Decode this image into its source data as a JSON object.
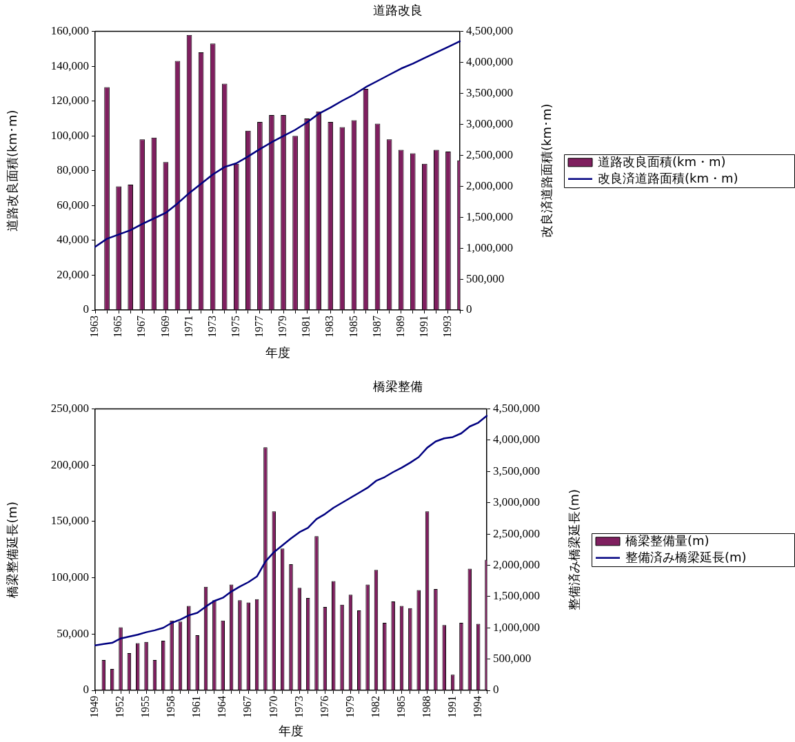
{
  "chart_data": [
    {
      "type": "bar",
      "title": "道路改良",
      "xlabel": "年度",
      "ylabel": "道路改良面積(km･m)",
      "y2label": "改良済道路面積(km･m)",
      "categories": [
        "1963",
        null,
        "1965",
        null,
        "1967",
        null,
        "1969",
        null,
        "1971",
        null,
        "1973",
        null,
        "1975",
        null,
        "1977",
        null,
        "1979",
        null,
        "1981",
        null,
        "1983",
        null,
        "1985",
        null,
        "1987",
        null,
        "1989",
        null,
        "1991",
        null,
        "1993",
        null
      ],
      "series": [
        {
          "name": "道路改良面積(km・m)",
          "color": "#7f1f5f",
          "values": [
            null,
            128000,
            71000,
            72000,
            98000,
            99000,
            85000,
            143000,
            158000,
            148000,
            153000,
            130000,
            84000,
            103000,
            108000,
            112000,
            112000,
            100000,
            110000,
            114000,
            108000,
            105000,
            109000,
            127000,
            107000,
            98000,
            92000,
            90000,
            84000,
            92000,
            91000,
            86000
          ]
        },
        {
          "name": "改良済道路面積(km・m)",
          "type": "line",
          "axis": "y2",
          "color": "#000080",
          "values": [
            1020000,
            1150000,
            1220000,
            1290000,
            1390000,
            1480000,
            1570000,
            1720000,
            1890000,
            2040000,
            2190000,
            2310000,
            2370000,
            2480000,
            2600000,
            2710000,
            2810000,
            2910000,
            3030000,
            3170000,
            3270000,
            3380000,
            3480000,
            3600000,
            3700000,
            3800000,
            3900000,
            3980000,
            4070000,
            4160000,
            4250000,
            4340000
          ]
        }
      ],
      "ylim": [
        0,
        160000
      ],
      "yticks": [
        0,
        {
          "value": 20000,
          "label": "20,000"
        },
        {
          "value": 40000,
          "label": "40,000"
        },
        {
          "value": 60000,
          "label": "60,000"
        },
        {
          "value": 80000,
          "label": "80,000"
        },
        {
          "value": 100000,
          "label": "100,000"
        },
        {
          "value": 120000,
          "label": "120,000"
        },
        {
          "value": 140000,
          "label": "140,000"
        },
        {
          "value": 160000,
          "label": "160,000"
        }
      ],
      "y2lim": [
        0,
        4500000
      ],
      "y2ticks": [
        0,
        {
          "value": 500000,
          "label": "500,000"
        },
        {
          "value": 1000000,
          "label": "1,000,000"
        },
        {
          "value": 1500000,
          "label": "1,500,000"
        },
        {
          "value": 2000000,
          "label": "2,000,000"
        },
        {
          "value": 2500000,
          "label": "2,500,000"
        },
        {
          "value": 3000000,
          "label": "3,000,000"
        },
        {
          "value": 3500000,
          "label": "3,500,000"
        },
        {
          "value": 4000000,
          "label": "4,000,000"
        },
        {
          "value": 4500000,
          "label": "4,500,000"
        }
      ],
      "grid": false,
      "legend": "right"
    },
    {
      "type": "bar",
      "title": "橋梁整備",
      "xlabel": "年度",
      "ylabel": "橋梁整備延長(m)",
      "y2label": "整備済み橋梁延長(m)",
      "categories": [
        "1949",
        null,
        null,
        "1952",
        null,
        null,
        "1955",
        null,
        null,
        "1958",
        null,
        null,
        "1961",
        null,
        null,
        "1964",
        null,
        null,
        "1967",
        null,
        null,
        "1970",
        null,
        null,
        "1973",
        null,
        null,
        "1976",
        null,
        null,
        "1979",
        null,
        null,
        "1982",
        null,
        null,
        "1985",
        null,
        null,
        "1988",
        null,
        null,
        "1991",
        null,
        null,
        "1994",
        null
      ],
      "series": [
        {
          "name": "橋梁整備量(m)",
          "color": "#7f1f5f",
          "values": [
            null,
            27000,
            19000,
            56000,
            33000,
            42000,
            43000,
            27000,
            44000,
            62000,
            61000,
            75000,
            49000,
            92000,
            80000,
            62000,
            94000,
            80000,
            78000,
            81000,
            216000,
            159000,
            126000,
            112000,
            91000,
            82000,
            137000,
            74000,
            97000,
            76000,
            85000,
            71000,
            94000,
            107000,
            60000,
            79000,
            75000,
            73000,
            89000,
            159000,
            90000,
            58000,
            14000,
            60000,
            108000,
            59000,
            116000
          ]
        },
        {
          "name": "整備済み橋梁延長(m)",
          "type": "line",
          "axis": "y2",
          "color": "#000080",
          "values": [
            720000,
            740000,
            760000,
            830000,
            860000,
            890000,
            930000,
            960000,
            1000000,
            1080000,
            1130000,
            1200000,
            1240000,
            1340000,
            1430000,
            1480000,
            1580000,
            1660000,
            1730000,
            1820000,
            2060000,
            2210000,
            2320000,
            2430000,
            2530000,
            2600000,
            2740000,
            2820000,
            2920000,
            3000000,
            3080000,
            3160000,
            3240000,
            3350000,
            3410000,
            3490000,
            3560000,
            3640000,
            3730000,
            3880000,
            3980000,
            4030000,
            4050000,
            4110000,
            4220000,
            4280000,
            4390000
          ]
        }
      ],
      "ylim": [
        0,
        250000
      ],
      "yticks": [
        0,
        {
          "value": 50000,
          "label": "50,000"
        },
        {
          "value": 100000,
          "label": "100,000"
        },
        {
          "value": 150000,
          "label": "150,000"
        },
        {
          "value": 200000,
          "label": "200,000"
        },
        {
          "value": 250000,
          "label": "250,000"
        }
      ],
      "y2lim": [
        0,
        4500000
      ],
      "y2ticks": [
        0,
        {
          "value": 500000,
          "label": "500,000"
        },
        {
          "value": 1000000,
          "label": "1,000,000"
        },
        {
          "value": 1500000,
          "label": "1,500,000"
        },
        {
          "value": 2000000,
          "label": "2,000,000"
        },
        {
          "value": 2500000,
          "label": "2,500,000"
        },
        {
          "value": 3000000,
          "label": "3,000,000"
        },
        {
          "value": 3500000,
          "label": "3,500,000"
        },
        {
          "value": 4000000,
          "label": "4,000,000"
        },
        {
          "value": 4500000,
          "label": "4,500,000"
        }
      ],
      "grid": false,
      "legend": "right"
    }
  ]
}
